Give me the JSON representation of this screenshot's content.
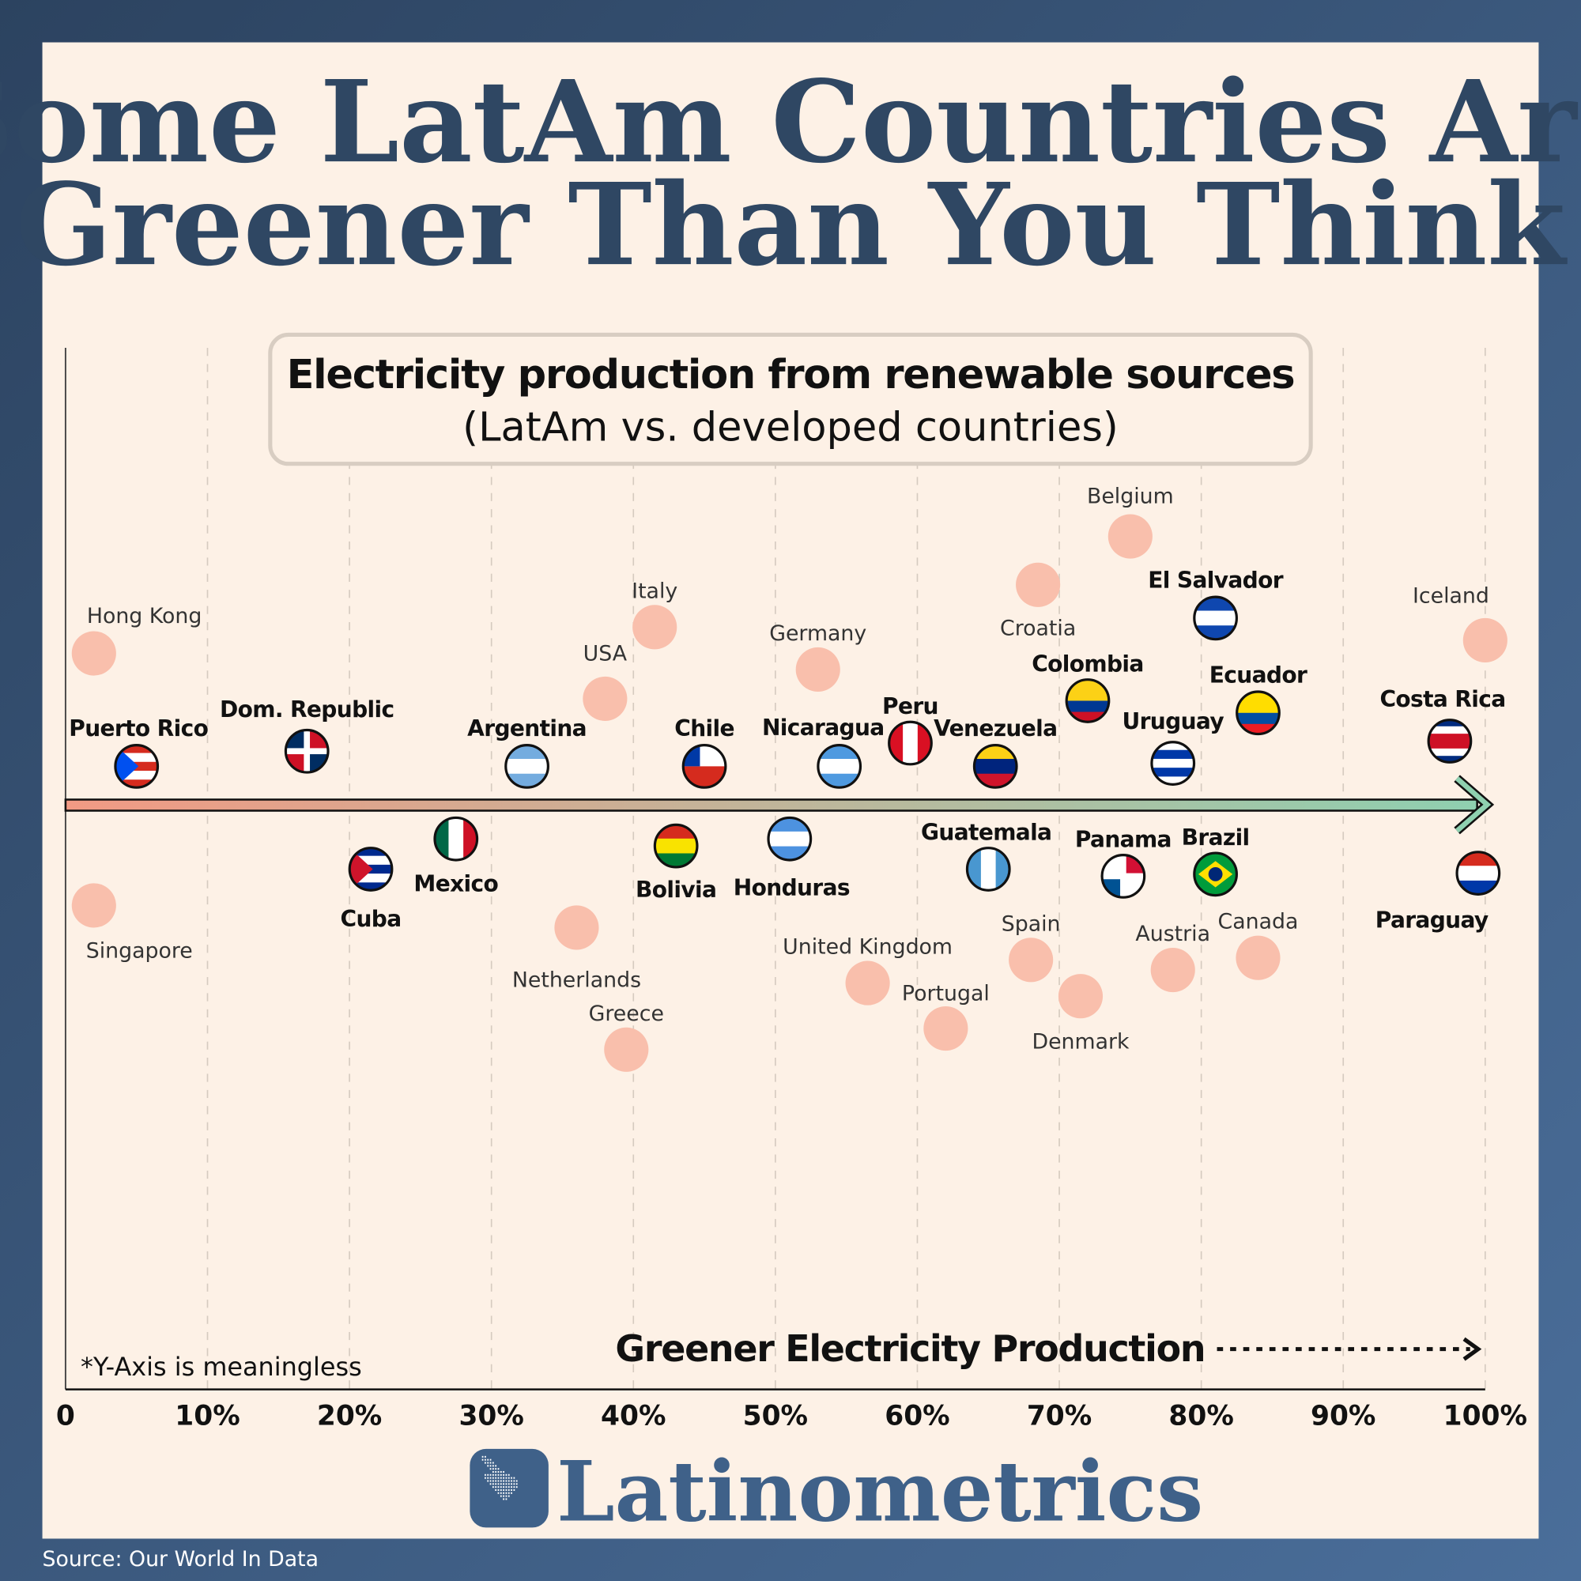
{
  "title_lines": [
    "Some LatAm Countries Are",
    "Greener Than You Think"
  ],
  "subtitle": {
    "main": "Electricity production from renewable sources",
    "sub": "(LatAm vs. developed countries)"
  },
  "footnote": "*Y-Axis is meaningless",
  "direction_label": "Greener Electricity Production",
  "brand": "Latinometrics",
  "source": "Source: Our World In Data",
  "colors": {
    "background_dark": "#2c4360",
    "background_light": "#4a6e9a",
    "panel": "#fdf1e6",
    "title": "#2f4763",
    "developed_dot": "#f9bfac",
    "arrow_start": "#f29a84",
    "arrow_end": "#8fd0b0",
    "brand": "#3f6189"
  },
  "chart_data": {
    "type": "scatter",
    "title": "Electricity production from renewable sources",
    "subtitle": "(LatAm vs. developed countries)",
    "xlabel": "Greener Electricity Production",
    "xlim": [
      0,
      100
    ],
    "x_ticks": [
      "0",
      "10%",
      "20%",
      "30%",
      "40%",
      "50%",
      "60%",
      "70%",
      "80%",
      "90%",
      "100%"
    ],
    "y_note": "*Y-Axis is meaningless",
    "grid": "vertical dashed",
    "series": [
      {
        "group": "LatAm",
        "marker": "flag",
        "points": [
          {
            "name": "Puerto Rico",
            "x": 5,
            "flag": {
              "orient": "h",
              "stripes": [
                "#d52b1e",
                "#ffffff",
                "#d52b1e",
                "#ffffff",
                "#d52b1e"
              ],
              "canton": "#0050f0"
            }
          },
          {
            "name": "Dom. Republic",
            "x": 17,
            "flag": {
              "orient": "q",
              "stripes": [
                "#002d62",
                "#ce1126",
                "#ce1126",
                "#002d62"
              ],
              "canton": "#ffffff"
            }
          },
          {
            "name": "Cuba",
            "x": 21.5,
            "flag": {
              "orient": "h",
              "stripes": [
                "#002a8f",
                "#ffffff",
                "#002a8f",
                "#ffffff",
                "#002a8f"
              ],
              "canton": "#cf142b"
            }
          },
          {
            "name": "Mexico",
            "x": 27.5,
            "flag": {
              "orient": "v",
              "stripes": [
                "#006847",
                "#ffffff",
                "#ce1126"
              ]
            }
          },
          {
            "name": "Argentina",
            "x": 32.5,
            "flag": {
              "orient": "h",
              "stripes": [
                "#74acdf",
                "#ffffff",
                "#74acdf"
              ]
            }
          },
          {
            "name": "Bolivia",
            "x": 43,
            "flag": {
              "orient": "h",
              "stripes": [
                "#d52b1e",
                "#f9e300",
                "#007934"
              ]
            }
          },
          {
            "name": "Chile",
            "x": 45,
            "flag": {
              "orient": "h",
              "stripes": [
                "#ffffff",
                "#d52b1e"
              ],
              "canton": "#0039a6"
            }
          },
          {
            "name": "Honduras",
            "x": 51,
            "flag": {
              "orient": "h",
              "stripes": [
                "#4d92e0",
                "#ffffff",
                "#4d92e0"
              ]
            }
          },
          {
            "name": "Nicaragua",
            "x": 54.5,
            "flag": {
              "orient": "h",
              "stripes": [
                "#4f9ae0",
                "#ffffff",
                "#4f9ae0"
              ]
            }
          },
          {
            "name": "Peru",
            "x": 59.5,
            "flag": {
              "orient": "v",
              "stripes": [
                "#d91023",
                "#ffffff",
                "#d91023"
              ]
            }
          },
          {
            "name": "Venezuela",
            "x": 65.5,
            "flag": {
              "orient": "h",
              "stripes": [
                "#fcd116",
                "#00247d",
                "#cf142b"
              ]
            }
          },
          {
            "name": "Guatemala",
            "x": 65,
            "flag": {
              "orient": "v",
              "stripes": [
                "#4997d0",
                "#ffffff",
                "#4997d0"
              ]
            }
          },
          {
            "name": "Colombia",
            "x": 72,
            "flag": {
              "orient": "h",
              "stripes": [
                "#fcd116",
                "#fcd116",
                "#003893",
                "#ce1126"
              ]
            }
          },
          {
            "name": "Panama",
            "x": 74.5,
            "flag": {
              "orient": "q",
              "stripes": [
                "#ffffff",
                "#d21034",
                "#005293",
                "#ffffff"
              ]
            }
          },
          {
            "name": "Uruguay",
            "x": 78,
            "flag": {
              "orient": "h",
              "stripes": [
                "#ffffff",
                "#0038a8",
                "#ffffff",
                "#0038a8",
                "#ffffff"
              ]
            }
          },
          {
            "name": "El Salvador",
            "x": 81,
            "flag": {
              "orient": "h",
              "stripes": [
                "#0f47af",
                "#ffffff",
                "#0f47af"
              ]
            }
          },
          {
            "name": "Brazil",
            "x": 81,
            "flag": {
              "orient": "h",
              "stripes": [
                "#009c3b"
              ],
              "canton": "#ffdf00"
            }
          },
          {
            "name": "Ecuador",
            "x": 84,
            "flag": {
              "orient": "h",
              "stripes": [
                "#ffdd00",
                "#ffdd00",
                "#034ea2",
                "#ed1c24"
              ]
            }
          },
          {
            "name": "Costa Rica",
            "x": 97.5,
            "flag": {
              "orient": "h",
              "stripes": [
                "#002b7f",
                "#ffffff",
                "#ce1126",
                "#ce1126",
                "#ffffff",
                "#002b7f"
              ]
            }
          },
          {
            "name": "Paraguay",
            "x": 99.5,
            "flag": {
              "orient": "h",
              "stripes": [
                "#d52b1e",
                "#ffffff",
                "#0038a8"
              ]
            }
          }
        ]
      },
      {
        "group": "Developed",
        "marker": "dot",
        "points": [
          {
            "name": "Hong Kong",
            "x": 2
          },
          {
            "name": "Singapore",
            "x": 2
          },
          {
            "name": "Netherlands",
            "x": 36
          },
          {
            "name": "USA",
            "x": 38
          },
          {
            "name": "Greece",
            "x": 39.5
          },
          {
            "name": "Italy",
            "x": 41.5
          },
          {
            "name": "Germany",
            "x": 53
          },
          {
            "name": "United Kingdom",
            "x": 56.5
          },
          {
            "name": "Portugal",
            "x": 62
          },
          {
            "name": "Spain",
            "x": 68
          },
          {
            "name": "Croatia",
            "x": 68.5
          },
          {
            "name": "Denmark",
            "x": 71.5
          },
          {
            "name": "Belgium",
            "x": 75
          },
          {
            "name": "Austria",
            "x": 78
          },
          {
            "name": "Canada",
            "x": 84
          },
          {
            "name": "Iceland",
            "x": 100
          }
        ]
      }
    ]
  }
}
